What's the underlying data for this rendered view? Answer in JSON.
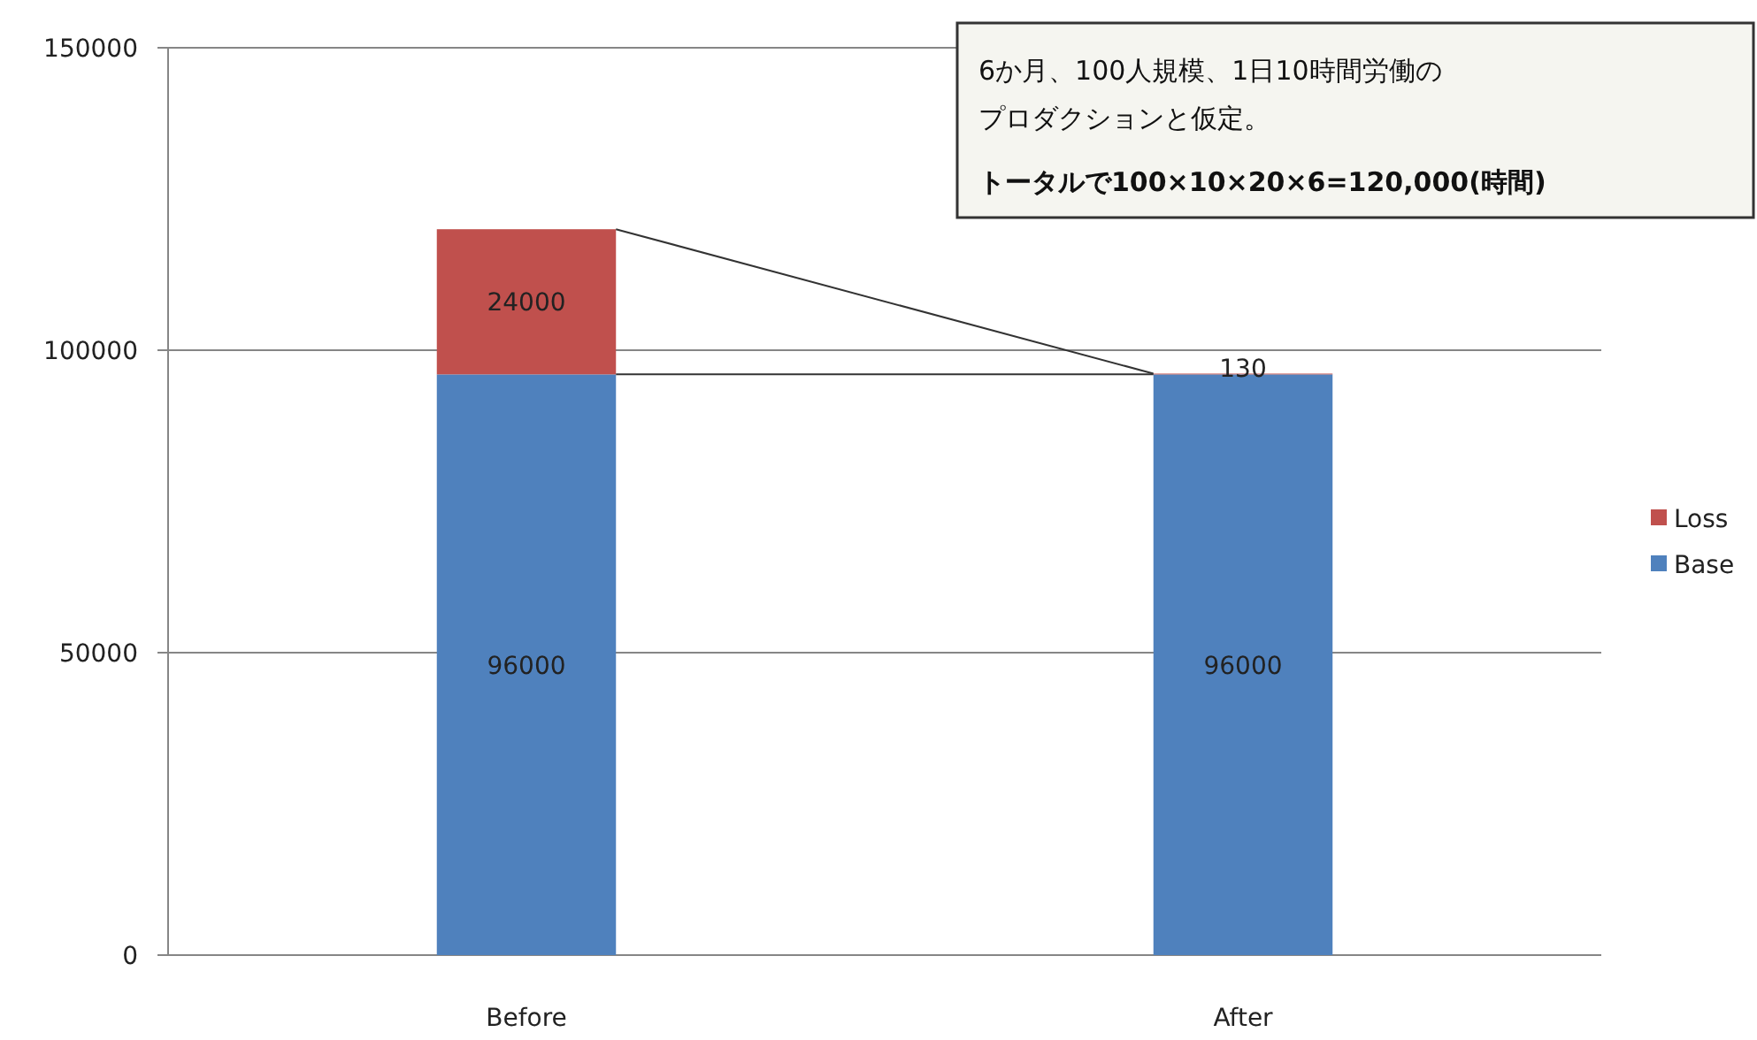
{
  "chart_data": {
    "type": "bar",
    "stacked": true,
    "categories": [
      "Before",
      "After"
    ],
    "series": [
      {
        "name": "Base",
        "color": "#4f81bd",
        "values": [
          96000,
          96000
        ]
      },
      {
        "name": "Loss",
        "color": "#c0504d",
        "values": [
          24000,
          130
        ]
      }
    ],
    "ylim": [
      0,
      150000
    ],
    "yticks": [
      0,
      50000,
      100000,
      150000
    ],
    "grid": "y",
    "legend": "right",
    "data_labels": true,
    "annotations": [
      "6か月、100人規模、1日10時間労働の",
      "プロダクションと仮定。",
      "トータルで100×10×20×6=120,000(時間)"
    ]
  }
}
